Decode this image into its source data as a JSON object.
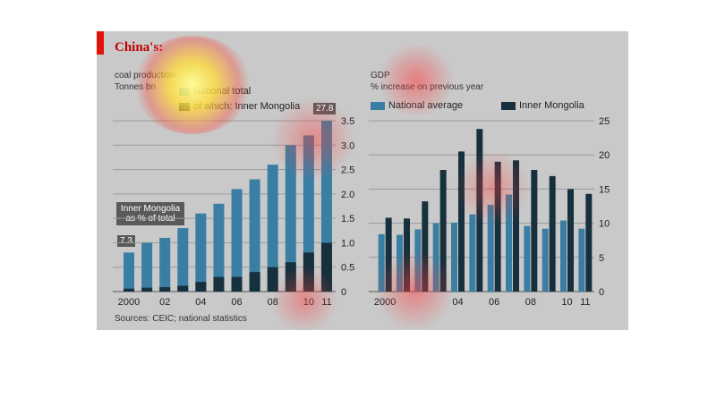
{
  "title": "China's:",
  "source": "Sources: CEIC; national statistics",
  "left": {
    "subtitle": "coal production",
    "units": "Tonnes bn",
    "legend_total": "National total",
    "legend_of_which": "of which: Inner Mongolia",
    "callout": "Inner Mongolia as % of total",
    "callout_start": "7.3",
    "callout_end": "27.8"
  },
  "right": {
    "subtitle": "GDP",
    "units": "% increase on previous year",
    "legend_national": "National average",
    "legend_im": "Inner Mongolia"
  },
  "colors": {
    "panel": "#c9c9c9",
    "bar_total": "#3a7fa3",
    "bar_im": "#17303d",
    "accent": "#e3120b"
  },
  "chart_data": [
    {
      "type": "bar",
      "title": "coal production",
      "ylabel": "Tonnes bn",
      "x": [
        2000,
        2001,
        2002,
        2003,
        2004,
        2005,
        2006,
        2007,
        2008,
        2009,
        2010,
        2011
      ],
      "x_tick_labels": [
        "2000",
        "02",
        "04",
        "06",
        "08",
        "10",
        "11"
      ],
      "y_ticks": [
        "0",
        "0.5",
        "1.0",
        "1.5",
        "2.0",
        "2.5",
        "3.0",
        "3.5"
      ],
      "ylim": [
        0,
        3.5
      ],
      "series": [
        {
          "name": "National total",
          "values": [
            0.8,
            1.0,
            1.1,
            1.3,
            1.6,
            1.8,
            2.1,
            2.3,
            2.6,
            3.0,
            3.2,
            3.5
          ]
        },
        {
          "name": "of which: Inner Mongolia",
          "values": [
            0.06,
            0.08,
            0.09,
            0.12,
            0.2,
            0.3,
            0.3,
            0.4,
            0.5,
            0.6,
            0.8,
            1.0
          ]
        }
      ],
      "annotations": [
        "7.3",
        "27.8"
      ]
    },
    {
      "type": "bar",
      "title": "GDP",
      "ylabel": "% increase on previous year",
      "x": [
        2000,
        2001,
        2002,
        2003,
        2004,
        2005,
        2006,
        2007,
        2008,
        2009,
        2010,
        2011
      ],
      "x_tick_labels": [
        "2000",
        "04",
        "06",
        "08",
        "10",
        "11"
      ],
      "y_ticks": [
        "0",
        "5",
        "10",
        "15",
        "20",
        "25"
      ],
      "ylim": [
        0,
        25
      ],
      "series": [
        {
          "name": "National average",
          "values": [
            8.4,
            8.3,
            9.1,
            10.0,
            10.1,
            11.3,
            12.7,
            14.2,
            9.6,
            9.2,
            10.4,
            9.2
          ]
        },
        {
          "name": "Inner Mongolia",
          "values": [
            10.8,
            10.7,
            13.2,
            17.8,
            20.5,
            23.8,
            19.0,
            19.2,
            17.8,
            16.9,
            15.0,
            14.3
          ]
        }
      ]
    }
  ]
}
